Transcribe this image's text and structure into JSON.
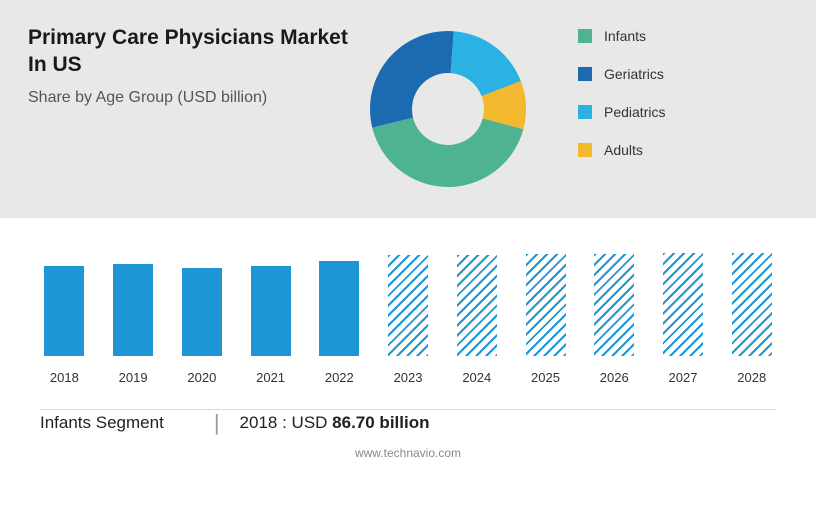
{
  "header": {
    "title": "Primary Care Physicians Market In US",
    "subtitle": "Share by Age Group (USD billion)"
  },
  "donut": {
    "slices": [
      {
        "label": "Infants",
        "value": 42,
        "color": "#4db393"
      },
      {
        "label": "Geriatrics",
        "value": 30,
        "color": "#1c6bb0"
      },
      {
        "label": "Pediatrics",
        "value": 18,
        "color": "#2bb2e3"
      },
      {
        "label": "Adults",
        "value": 10,
        "color": "#f2b92e"
      }
    ],
    "inner_radius": 36,
    "outer_radius": 78,
    "background": "#e8e8e6",
    "start_angle_deg": 15
  },
  "legend": {
    "items": [
      {
        "label": "Infants",
        "color": "#4db393"
      },
      {
        "label": "Geriatrics",
        "color": "#1c6bb0"
      },
      {
        "label": "Pediatrics",
        "color": "#2bb2e3"
      },
      {
        "label": "Adults",
        "color": "#f2b92e"
      }
    ]
  },
  "bar_chart": {
    "max_value": 100,
    "bar_color": "#1d96d5",
    "bars": [
      {
        "year": "2018",
        "value": 82,
        "forecast": false
      },
      {
        "year": "2019",
        "value": 84,
        "forecast": false
      },
      {
        "year": "2020",
        "value": 80,
        "forecast": false
      },
      {
        "year": "2021",
        "value": 82,
        "forecast": false
      },
      {
        "year": "2022",
        "value": 86,
        "forecast": false
      },
      {
        "year": "2023",
        "value": 92,
        "forecast": true
      },
      {
        "year": "2024",
        "value": 92,
        "forecast": true
      },
      {
        "year": "2025",
        "value": 93,
        "forecast": true
      },
      {
        "year": "2026",
        "value": 93,
        "forecast": true
      },
      {
        "year": "2027",
        "value": 94,
        "forecast": true
      },
      {
        "year": "2028",
        "value": 94,
        "forecast": true
      }
    ]
  },
  "footer": {
    "segment_label": "Infants Segment",
    "year": "2018",
    "prefix": ": USD",
    "value": "86.70 billion",
    "url": "www.technavio.com"
  }
}
